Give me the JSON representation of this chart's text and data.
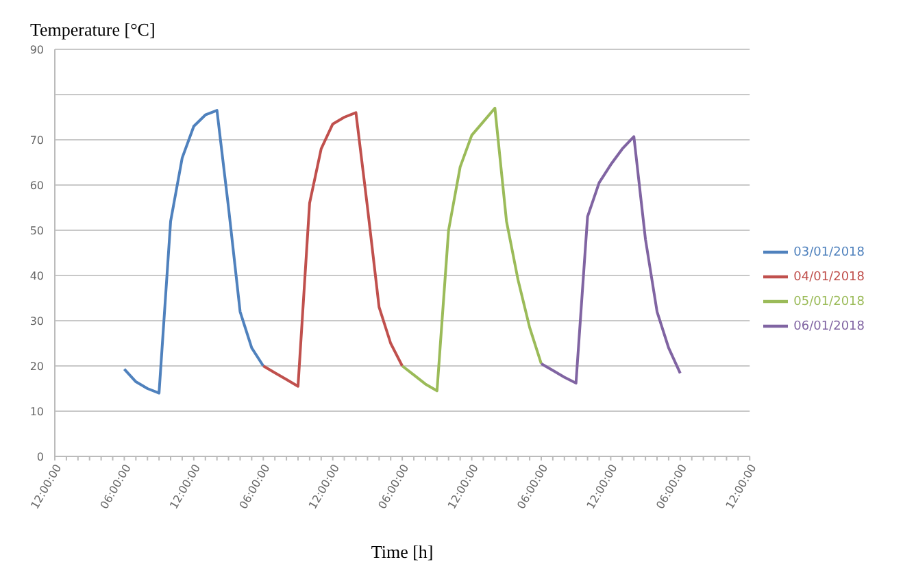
{
  "chart_data": {
    "type": "line",
    "xlabel": "Time [h]",
    "ylabel": "Temperature [°C]",
    "categories": [
      "12:00:00",
      null,
      null,
      null,
      null,
      null,
      "06:00:00",
      null,
      null,
      null,
      null,
      null,
      "12:00:00",
      null,
      null,
      null,
      null,
      null,
      "06:00:00",
      null,
      null,
      null,
      null,
      null,
      "12:00:00",
      null,
      null,
      null,
      null,
      null,
      "06:00:00",
      null,
      null,
      null,
      null,
      null,
      "12:00:00",
      null,
      null,
      null,
      null,
      null,
      "06:00:00",
      null,
      null,
      null,
      null,
      null,
      "12:00:00",
      null,
      null,
      null,
      null,
      null,
      "06:00:00",
      null,
      null,
      null,
      null,
      null,
      "12:00:00"
    ],
    "ylim": [
      0,
      90
    ],
    "yticks": [
      0,
      10,
      20,
      30,
      40,
      50,
      60,
      70,
      {
        "value": 80,
        "label": null
      },
      90
    ],
    "grid": "y",
    "legend": "right",
    "marker": "none",
    "line_style": "solid",
    "series": [
      {
        "name": "03/01/2018",
        "color": "#4f81bd",
        "values": [
          null,
          null,
          null,
          null,
          null,
          null,
          19.3,
          16.5,
          15,
          14,
          52,
          66,
          73,
          75.5,
          76.5,
          55,
          32,
          24,
          20,
          null,
          null,
          null,
          null,
          null,
          null,
          null,
          null,
          null,
          null,
          null,
          null,
          null,
          null,
          null,
          null,
          null,
          null,
          null,
          null,
          null,
          null,
          null,
          null,
          null,
          null,
          null,
          null,
          null,
          null,
          null,
          null,
          null,
          null,
          null,
          null,
          null,
          null,
          null,
          null,
          null,
          null
        ]
      },
      {
        "name": "04/01/2018",
        "color": "#c0504d",
        "values": [
          null,
          null,
          null,
          null,
          null,
          null,
          null,
          null,
          null,
          null,
          null,
          null,
          null,
          null,
          null,
          null,
          null,
          null,
          20,
          18.5,
          17,
          15.5,
          56,
          68,
          73.5,
          75,
          76,
          55,
          33,
          25,
          20,
          null,
          null,
          null,
          null,
          null,
          null,
          null,
          null,
          null,
          null,
          null,
          null,
          null,
          null,
          null,
          null,
          null,
          null,
          null,
          null,
          null,
          null,
          null,
          null,
          null,
          null,
          null,
          null,
          null,
          null
        ]
      },
      {
        "name": "05/01/2018",
        "color": "#9bbb59",
        "values": [
          null,
          null,
          null,
          null,
          null,
          null,
          null,
          null,
          null,
          null,
          null,
          null,
          null,
          null,
          null,
          null,
          null,
          null,
          null,
          null,
          null,
          null,
          null,
          null,
          null,
          null,
          null,
          null,
          null,
          null,
          20,
          18,
          16,
          14.5,
          50,
          64,
          71,
          74,
          77,
          52,
          39,
          28.5,
          20.5,
          null,
          null,
          null,
          null,
          null,
          null,
          null,
          null,
          null,
          null,
          null,
          null,
          null,
          null,
          null,
          null,
          null,
          null
        ]
      },
      {
        "name": "06/01/2018",
        "color": "#8064a2",
        "values": [
          null,
          null,
          null,
          null,
          null,
          null,
          null,
          null,
          null,
          null,
          null,
          null,
          null,
          null,
          null,
          null,
          null,
          null,
          null,
          null,
          null,
          null,
          null,
          null,
          null,
          null,
          null,
          null,
          null,
          null,
          null,
          null,
          null,
          null,
          null,
          null,
          null,
          null,
          null,
          null,
          null,
          null,
          20.5,
          19,
          17.5,
          16.2,
          53,
          60.5,
          64.5,
          68,
          70.7,
          48,
          32,
          24,
          18.4,
          null,
          null,
          null,
          null,
          null,
          null
        ]
      }
    ]
  }
}
